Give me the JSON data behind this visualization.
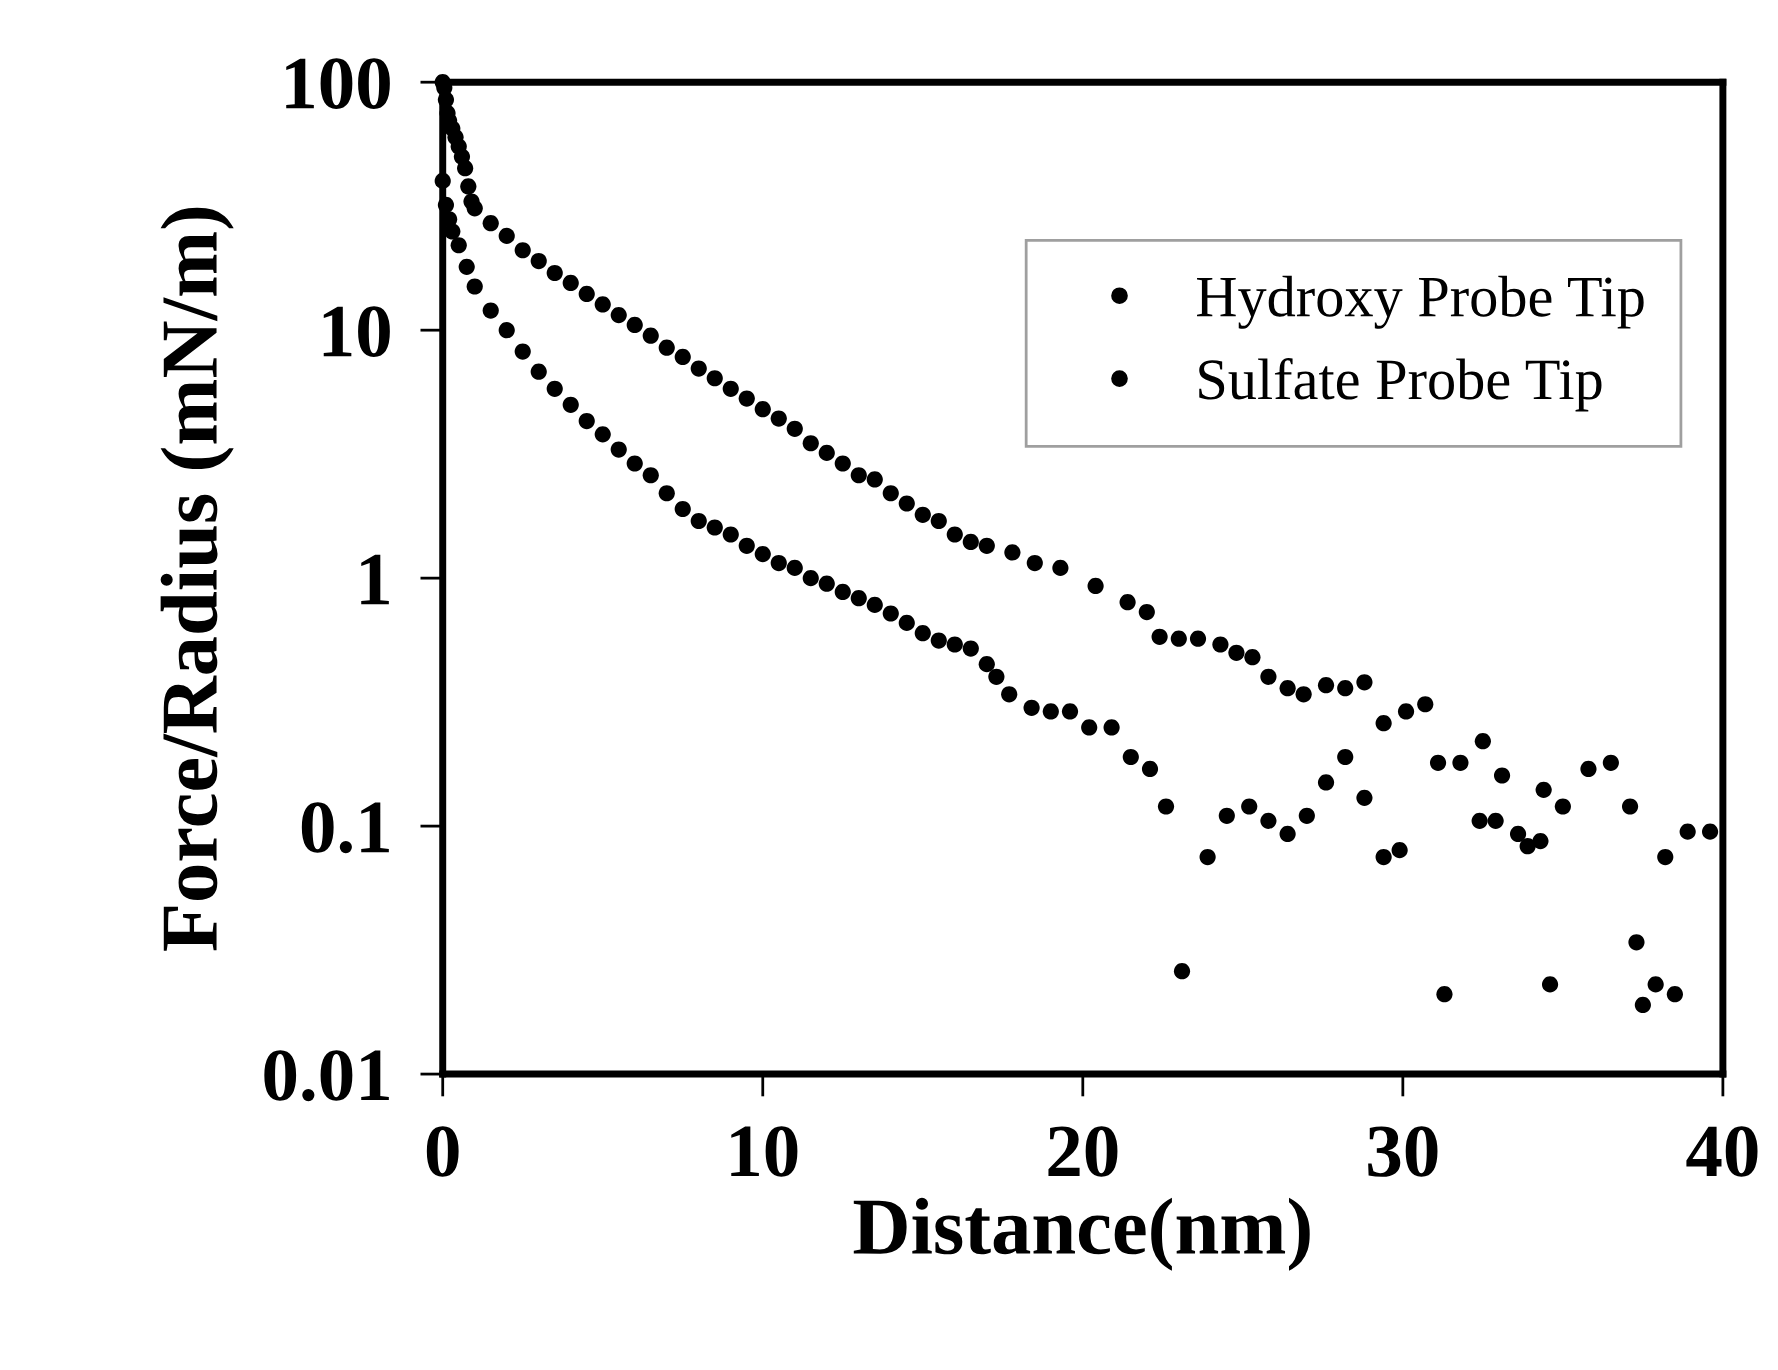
{
  "chart_data": {
    "type": "scatter",
    "xlabel": "Distance(nm)",
    "ylabel": "Force/Radius (mN/m)",
    "log": "y",
    "xlim": [
      0,
      40
    ],
    "xticks": [
      0,
      10,
      20,
      30,
      40
    ],
    "ylim": [
      0.01,
      100
    ],
    "yticks": [
      0.01,
      0.1,
      1,
      10,
      100
    ],
    "grid": false,
    "legend": "top right",
    "marker": "circle",
    "series": [
      {
        "name": "Hydroxy Probe Tip",
        "color": "#000000",
        "x": [
          0,
          0.05,
          0.1,
          0.15,
          0.2,
          0.3,
          0.4,
          0.5,
          0.6,
          0.7,
          0.8,
          0.9,
          1.0,
          1.5,
          2,
          2.5,
          3,
          3.5,
          4,
          4.5,
          5,
          5.5,
          6,
          6.5,
          7,
          7.5,
          8,
          8.5,
          9,
          9.5,
          10,
          10.5,
          11,
          11.5,
          12,
          12.5,
          13,
          13.5,
          14,
          14.5,
          15,
          15.5,
          16,
          16.5,
          17,
          17.8,
          18.5,
          19.3,
          20.4,
          21.4,
          22,
          22.4,
          23,
          23.6,
          24.3,
          24.8,
          25.3,
          25.8,
          26.4,
          26.9,
          27.6,
          28.2,
          28.8,
          29.4,
          30.1,
          30.7,
          31.1,
          31.8,
          32.5,
          33.1,
          34.4,
          35,
          35.8,
          36.5,
          37.1,
          38.2,
          38.9,
          39.6
        ],
        "values": [
          100,
          95,
          85,
          75,
          70,
          65,
          60,
          55,
          50,
          45,
          38,
          33,
          31,
          27,
          24,
          21,
          19,
          17,
          15.5,
          14,
          12.7,
          11.5,
          10.5,
          9.5,
          8.5,
          7.8,
          7,
          6.4,
          5.8,
          5.3,
          4.8,
          4.4,
          4,
          3.5,
          3.2,
          2.9,
          2.6,
          2.5,
          2.2,
          2,
          1.8,
          1.7,
          1.5,
          1.4,
          1.35,
          1.27,
          1.15,
          1.1,
          0.93,
          0.8,
          0.73,
          0.58,
          0.57,
          0.57,
          0.54,
          0.5,
          0.48,
          0.4,
          0.36,
          0.34,
          0.37,
          0.36,
          0.38,
          0.26,
          0.29,
          0.31,
          0.18,
          0.18,
          0.22,
          0.16,
          0.14,
          0.12,
          0.17,
          0.18,
          0.12,
          0.075,
          0.095,
          0.095
        ]
      },
      {
        "name": "Sulfate Probe Tip",
        "color": "#000000",
        "x": [
          0,
          0.1,
          0.2,
          0.3,
          0.5,
          0.75,
          1,
          1.5,
          2,
          2.5,
          3,
          3.5,
          4,
          4.5,
          5,
          5.5,
          6,
          6.5,
          7,
          7.5,
          8,
          8.5,
          9,
          9.5,
          10,
          10.5,
          11,
          11.5,
          12,
          12.5,
          13,
          13.5,
          14,
          14.5,
          15,
          15.5,
          16,
          16.5,
          17,
          17.3,
          17.7,
          18.4,
          19,
          19.6,
          20.2,
          20.9,
          21.5,
          22.1,
          22.6,
          23.1,
          23.9,
          24.5,
          25.2,
          25.8,
          26.4,
          27,
          27.6,
          28.2,
          28.8,
          29.4,
          29.9,
          31.3,
          32.4,
          32.9,
          33.6,
          33.9,
          34.3,
          34.6,
          37.3,
          37.5,
          37.9,
          38.5
        ],
        "values": [
          40,
          32,
          28,
          25,
          22,
          18,
          15,
          12,
          10,
          8.2,
          6.8,
          5.8,
          5,
          4.3,
          3.8,
          3.3,
          2.9,
          2.6,
          2.2,
          1.9,
          1.7,
          1.6,
          1.5,
          1.35,
          1.25,
          1.15,
          1.1,
          1,
          0.95,
          0.88,
          0.83,
          0.78,
          0.72,
          0.66,
          0.6,
          0.56,
          0.54,
          0.52,
          0.45,
          0.4,
          0.34,
          0.3,
          0.29,
          0.29,
          0.25,
          0.25,
          0.19,
          0.17,
          0.12,
          0.026,
          0.075,
          0.11,
          0.12,
          0.105,
          0.093,
          0.11,
          0.15,
          0.19,
          0.13,
          0.075,
          0.08,
          0.021,
          0.105,
          0.105,
          0.093,
          0.083,
          0.087,
          0.023,
          0.034,
          0.019,
          0.023,
          0.021
        ]
      }
    ]
  }
}
